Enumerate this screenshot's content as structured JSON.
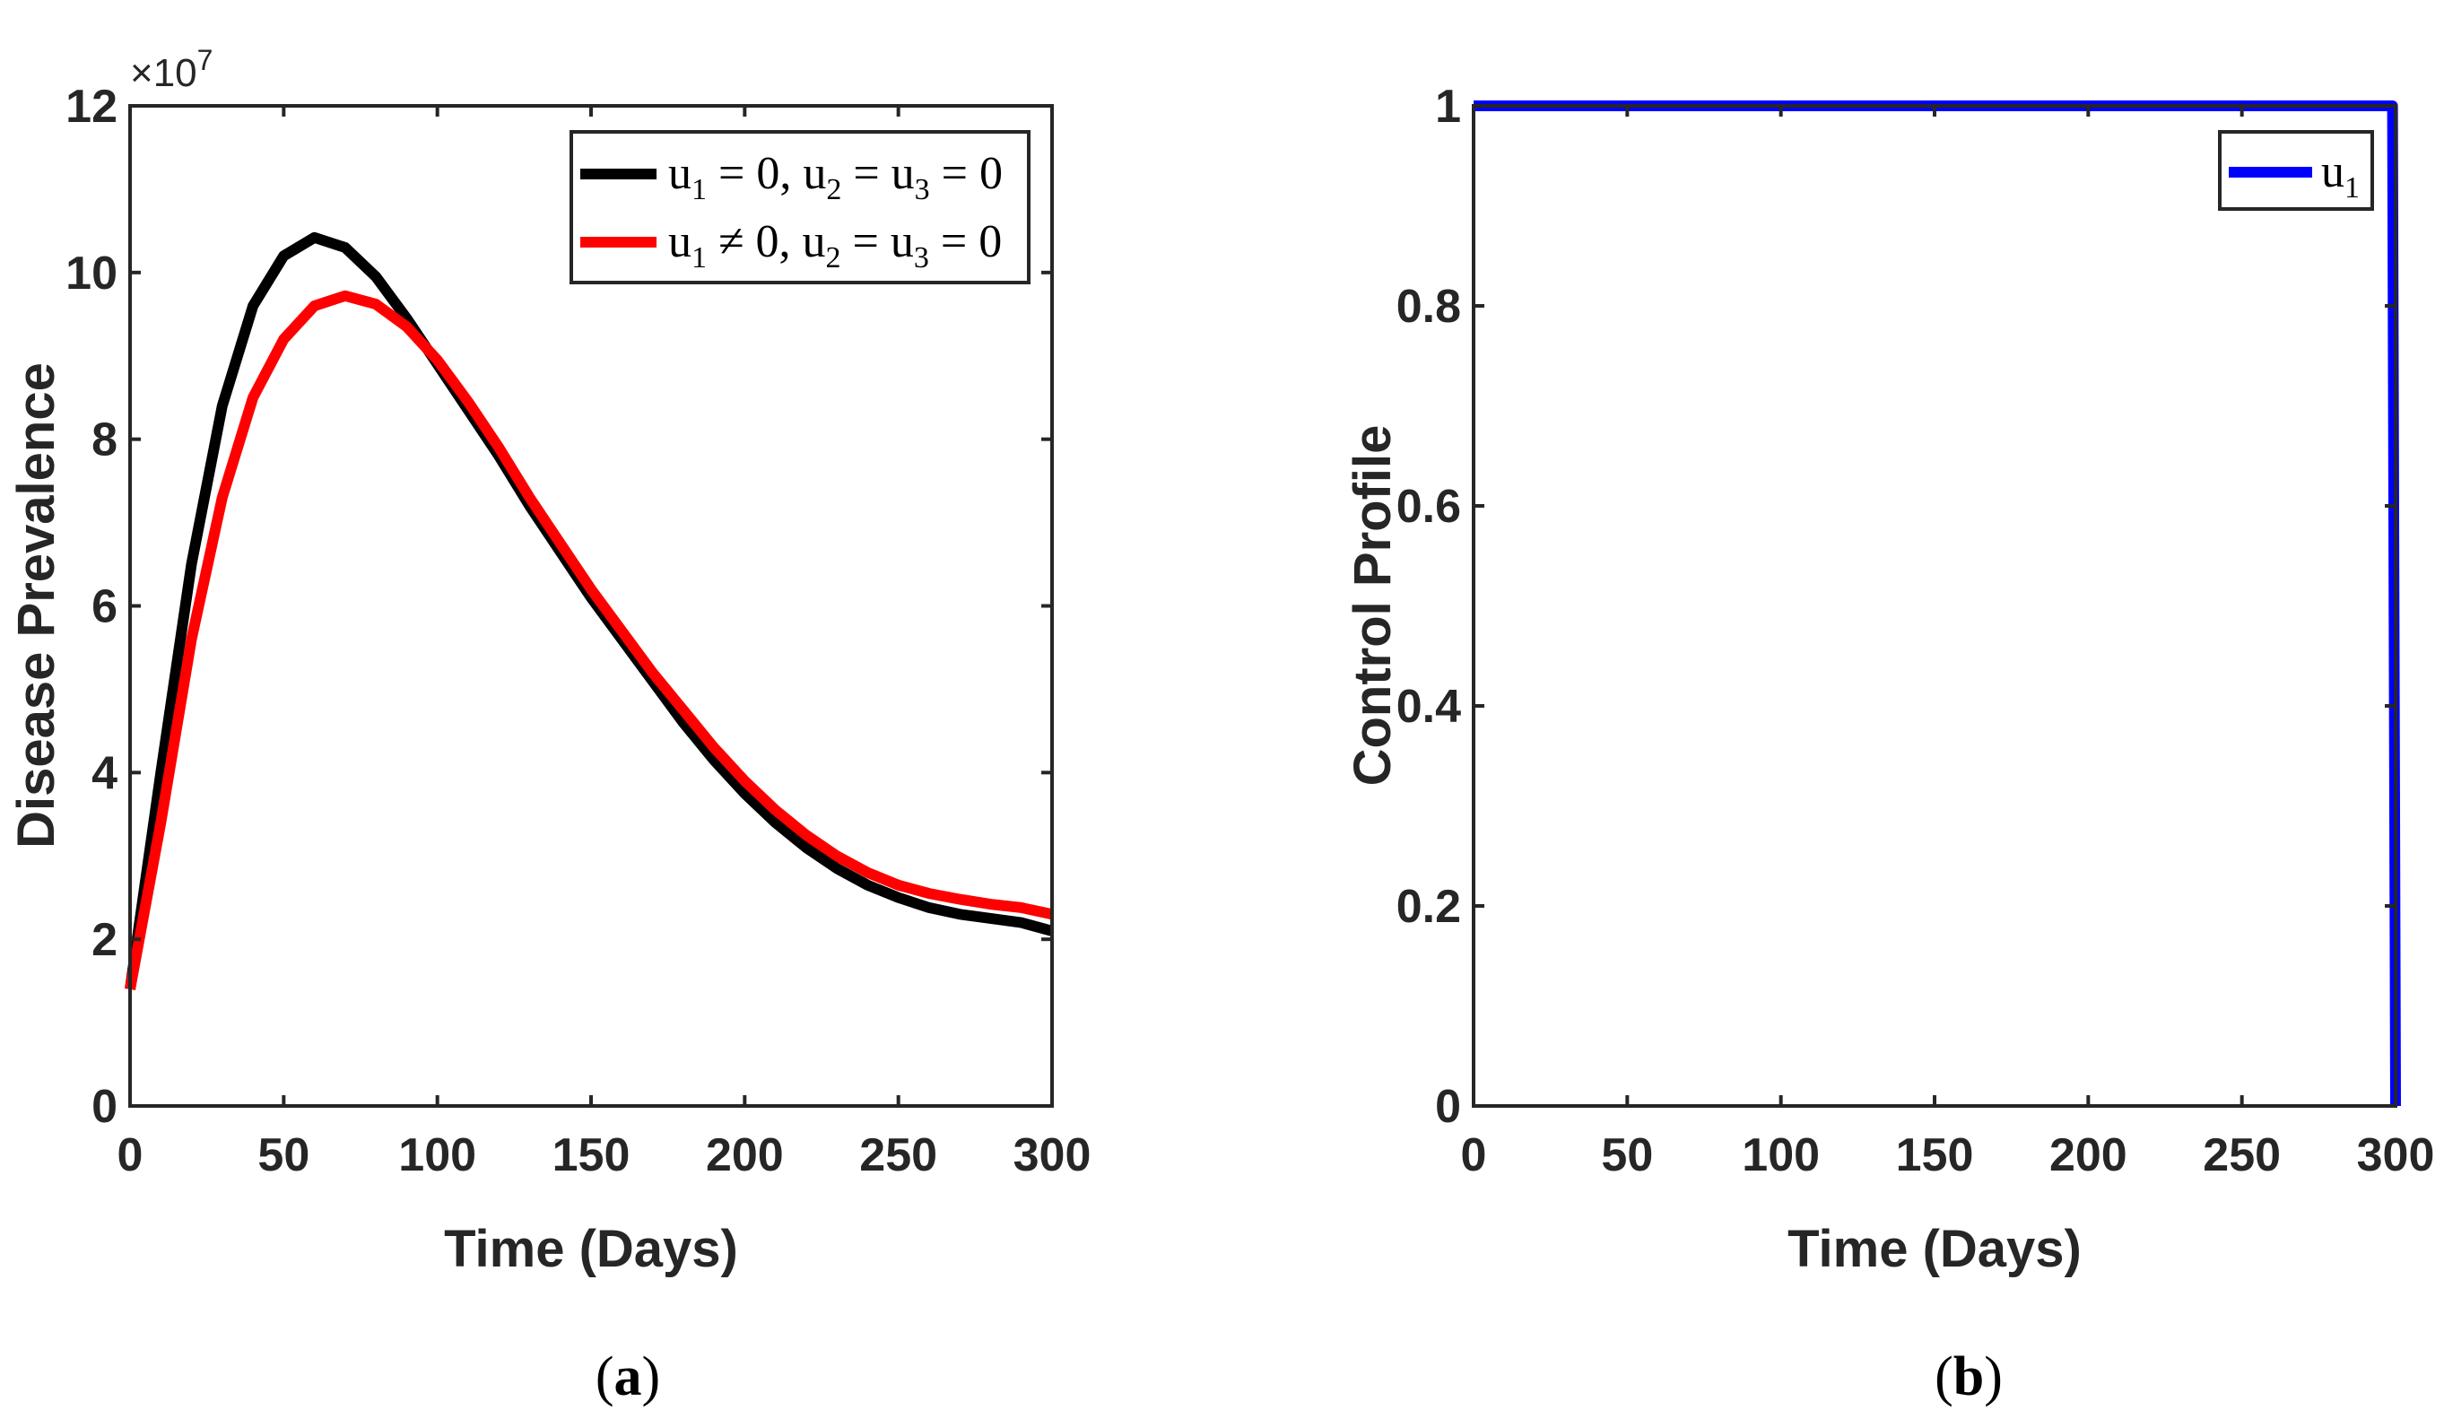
{
  "chart_data": [
    {
      "panel": "a",
      "type": "line",
      "caption_letter": "a",
      "xlabel": "Time (Days)",
      "ylabel": "Disease Prevalence",
      "xlim": [
        0,
        300
      ],
      "ylim": [
        0,
        12
      ],
      "y_scale_label": "×10",
      "y_scale_exponent": "7",
      "xticks": [
        "0",
        "50",
        "100",
        "150",
        "200",
        "250",
        "300"
      ],
      "yticks": [
        "0",
        "2",
        "4",
        "6",
        "8",
        "10",
        "12"
      ],
      "legend_position": "top-right",
      "series": [
        {
          "name": "u1 = 0, u2 = u3 = 0",
          "legend_parts": [
            "u",
            "1",
            " = 0, u",
            "2",
            " = u",
            "3",
            " = 0"
          ],
          "color": "#000000",
          "x": [
            0,
            10,
            20,
            30,
            40,
            50,
            60,
            70,
            80,
            90,
            100,
            110,
            120,
            130,
            140,
            150,
            160,
            170,
            180,
            190,
            200,
            210,
            220,
            230,
            240,
            250,
            260,
            270,
            280,
            290,
            300
          ],
          "y": [
            1.4,
            4.0,
            6.5,
            8.4,
            9.6,
            10.2,
            10.42,
            10.3,
            9.95,
            9.45,
            8.9,
            8.35,
            7.8,
            7.2,
            6.65,
            6.1,
            5.6,
            5.1,
            4.6,
            4.15,
            3.75,
            3.4,
            3.1,
            2.85,
            2.65,
            2.5,
            2.38,
            2.3,
            2.25,
            2.2,
            2.1
          ]
        },
        {
          "name": "u1 ≠ 0, u2 = u3 = 0",
          "legend_parts": [
            "u",
            "1",
            " ≠ 0, u",
            "2",
            " = u",
            "3",
            " = 0"
          ],
          "color": "#ff0000",
          "x": [
            0,
            10,
            20,
            30,
            40,
            50,
            60,
            70,
            80,
            90,
            100,
            110,
            120,
            130,
            140,
            150,
            160,
            170,
            180,
            190,
            200,
            210,
            220,
            230,
            240,
            250,
            260,
            270,
            280,
            290,
            300
          ],
          "y": [
            1.4,
            3.4,
            5.6,
            7.3,
            8.5,
            9.2,
            9.6,
            9.72,
            9.62,
            9.35,
            8.95,
            8.45,
            7.9,
            7.3,
            6.75,
            6.2,
            5.7,
            5.2,
            4.75,
            4.3,
            3.9,
            3.55,
            3.25,
            3.0,
            2.8,
            2.65,
            2.55,
            2.48,
            2.42,
            2.38,
            2.3
          ]
        }
      ]
    },
    {
      "panel": "b",
      "type": "line",
      "caption_letter": "b",
      "xlabel": "Time (Days)",
      "ylabel": "Control Profile",
      "xlim": [
        0,
        300
      ],
      "ylim": [
        0,
        1
      ],
      "xticks": [
        "0",
        "50",
        "100",
        "150",
        "200",
        "250",
        "300"
      ],
      "yticks": [
        "0",
        "0.2",
        "0.4",
        "0.6",
        "0.8",
        "1"
      ],
      "legend_position": "top-right",
      "series": [
        {
          "name": "u1",
          "legend_parts": [
            "u",
            "1"
          ],
          "color": "#0000ff",
          "x": [
            0,
            299,
            300
          ],
          "y": [
            1,
            1,
            0
          ]
        }
      ]
    }
  ]
}
